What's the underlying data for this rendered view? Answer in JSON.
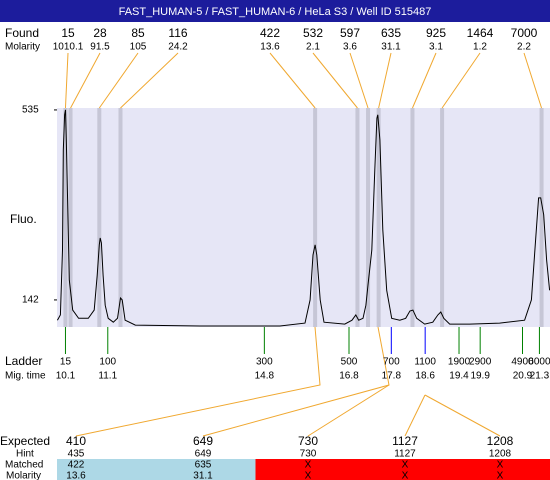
{
  "header": {
    "title": "FAST_HUMAN-5 / FAST_HUMAN-6 / HeLa S3 / Well ID 515487"
  },
  "chart_data": {
    "type": "electropherogram",
    "y_label": "Fluo.",
    "ylim": [
      86,
      539
    ],
    "yticks": [
      142,
      535
    ],
    "xlim": [
      9.9,
      21.55
    ],
    "plot_color": "#e6e6f6",
    "trace": {
      "color": "#000000",
      "x": [
        9.91,
        9.98,
        10.03,
        10.05,
        10.08,
        10.1,
        10.12,
        10.15,
        10.19,
        10.27,
        10.41,
        10.64,
        10.78,
        10.85,
        10.9,
        10.92,
        10.95,
        10.99,
        11.04,
        11.11,
        11.23,
        11.33,
        11.4,
        11.44,
        11.51,
        11.75,
        13.28,
        15.17,
        15.76,
        15.88,
        15.95,
        16.0,
        16.04,
        16.12,
        16.21,
        16.7,
        16.87,
        16.96,
        17.03,
        17.13,
        17.2,
        17.25,
        17.34,
        17.41,
        17.46,
        17.48,
        17.53,
        17.6,
        17.69,
        17.81,
        18.0,
        18.14,
        18.24,
        18.31,
        18.4,
        18.59,
        18.78,
        18.9,
        18.97,
        19.04,
        19.18,
        19.65,
        20.36,
        20.95,
        21.11,
        21.21,
        21.28,
        21.33,
        21.4,
        21.47,
        21.54
      ],
      "values": [
        100,
        111,
        245,
        452,
        525,
        535,
        473,
        349,
        183,
        121,
        104,
        104,
        121,
        193,
        256,
        270,
        260,
        193,
        131,
        104,
        96,
        104,
        146,
        142,
        100,
        90,
        88,
        88,
        94,
        142,
        235,
        256,
        235,
        142,
        96,
        92,
        100,
        111,
        100,
        104,
        131,
        173,
        245,
        411,
        518,
        525,
        473,
        287,
        162,
        104,
        100,
        104,
        119,
        121,
        104,
        92,
        96,
        111,
        117,
        104,
        92,
        92,
        94,
        100,
        142,
        266,
        353,
        353,
        318,
        225,
        162
      ]
    },
    "found": {
      "label": "Found",
      "molarity_label": "Molarity",
      "band_color": "#c6c6d6",
      "line_color": "#f0a830",
      "sizes": [
        15,
        28,
        85,
        116,
        422,
        532,
        597,
        635,
        925,
        1464,
        7000
      ],
      "molarity": [
        1010.1,
        91.5,
        105,
        24.2,
        13.6,
        2.1,
        3.6,
        31.1,
        3.1,
        1.2,
        2.2
      ],
      "x": [
        10.1,
        10.22,
        10.9,
        11.4,
        16.0,
        17.0,
        17.25,
        17.5,
        18.3,
        19.0,
        21.35
      ]
    },
    "ladder": {
      "label": "Ladder",
      "time_label": "Mig. time",
      "sizes": [
        15,
        100,
        300,
        500,
        700,
        1100,
        1900,
        2900,
        4900,
        6000
      ],
      "x": [
        10.1,
        11.1,
        14.8,
        16.8,
        17.8,
        18.6,
        19.4,
        19.9,
        20.9,
        21.3
      ],
      "colors": [
        "#008000",
        "#008000",
        "#008000",
        "#008000",
        "#0000ff",
        "#0000ff",
        "#008000",
        "#008000",
        "#008000",
        "#008000"
      ]
    },
    "expected": {
      "labels": {
        "expected": "Expected",
        "hint": "Hint",
        "matched": "Matched",
        "molarity": "Molarity"
      },
      "values": [
        410,
        649,
        730,
        1127,
        1208
      ],
      "hint": [
        435,
        649,
        730,
        1127,
        1208
      ],
      "matched": [
        422,
        635,
        "X",
        "X",
        "X"
      ],
      "molarity": [
        13.6,
        31.1,
        "X",
        "X",
        "X"
      ],
      "colors": [
        "#add8e6",
        "#add8e6",
        "#ff0000",
        "#ff0000",
        "#ff0000"
      ]
    }
  }
}
